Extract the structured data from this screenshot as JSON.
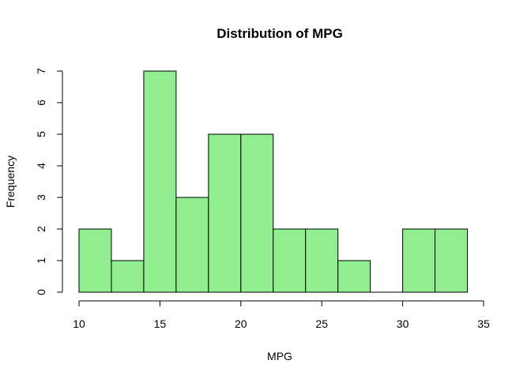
{
  "chart_data": {
    "type": "bar",
    "title": "Distribution of MPG",
    "xlabel": "MPG",
    "ylabel": "Frequency",
    "bin_edges": [
      10,
      12,
      14,
      16,
      18,
      20,
      22,
      24,
      26,
      28,
      30,
      32,
      34
    ],
    "values": [
      2,
      1,
      7,
      3,
      5,
      5,
      2,
      2,
      1,
      0,
      2,
      2
    ],
    "xlim": [
      10,
      35
    ],
    "ylim": [
      0,
      7
    ],
    "x_ticks": [
      "10",
      "15",
      "20",
      "25",
      "30",
      "35"
    ],
    "y_ticks": [
      "0",
      "1",
      "2",
      "3",
      "4",
      "5",
      "6",
      "7"
    ],
    "bar_color": "#90EE90",
    "bar_border_color": "#000000",
    "grid": false
  }
}
